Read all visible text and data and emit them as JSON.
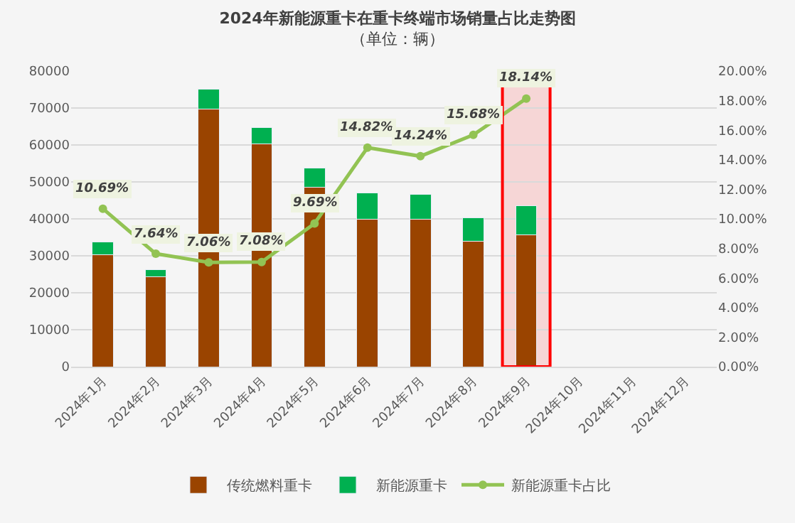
{
  "chart_data": {
    "type": "bar",
    "title": "2024年新能源重卡在重卡终端市场销量占比走势图",
    "subtitle": "（单位：辆）",
    "categories": [
      "2024年1月",
      "2024年2月",
      "2024年3月",
      "2024年4月",
      "2024年5月",
      "2024年6月",
      "2024年7月",
      "2024年8月",
      "2024年9月",
      "2024年10月",
      "2024年11月",
      "2024年12月"
    ],
    "stacked": true,
    "series": [
      {
        "name": "传统燃料重卡",
        "color": "#9a4400",
        "values": [
          30200,
          24300,
          69800,
          60200,
          48500,
          40000,
          40000,
          34000,
          35700,
          null,
          null,
          null
        ]
      },
      {
        "name": "新能源重卡",
        "color": "#00b050",
        "values": [
          3600,
          2000,
          5300,
          4600,
          5200,
          7000,
          6600,
          6200,
          7900,
          null,
          null,
          null
        ]
      },
      {
        "name": "新能源重卡占比",
        "type": "line",
        "axis": "y2",
        "color": "#92c353",
        "marker": "circle",
        "values": [
          10.69,
          7.64,
          7.06,
          7.08,
          9.69,
          14.82,
          14.24,
          15.68,
          18.14,
          null,
          null,
          null
        ],
        "value_labels": [
          "10.69%",
          "7.64%",
          "7.06%",
          "7.08%",
          "9.69%",
          "14.82%",
          "14.24%",
          "15.68%",
          "18.14%",
          null,
          null,
          null
        ]
      }
    ],
    "ylim": [
      0,
      80000
    ],
    "yticks": [
      0,
      10000,
      20000,
      30000,
      40000,
      50000,
      60000,
      70000,
      80000
    ],
    "y2lim": [
      0,
      20
    ],
    "y2ticks": [
      {
        "value": 0,
        "label": "0.00%"
      },
      {
        "value": 2,
        "label": "2.00%"
      },
      {
        "value": 4,
        "label": "4.00%"
      },
      {
        "value": 6,
        "label": "6.00%"
      },
      {
        "value": 8,
        "label": "8.00%"
      },
      {
        "value": 10,
        "label": "10.00%"
      },
      {
        "value": 12,
        "label": "12.00%"
      },
      {
        "value": 14,
        "label": "14.00%"
      },
      {
        "value": 16,
        "label": "16.00%"
      },
      {
        "value": 18,
        "label": "18.00%"
      },
      {
        "value": 20,
        "label": "20.00%"
      }
    ],
    "bands": [
      {
        "axis": "x",
        "from": "2024年9月",
        "to": "2024年9月",
        "color": "#ff0000"
      }
    ],
    "grid": "y",
    "legend": "bottom"
  }
}
